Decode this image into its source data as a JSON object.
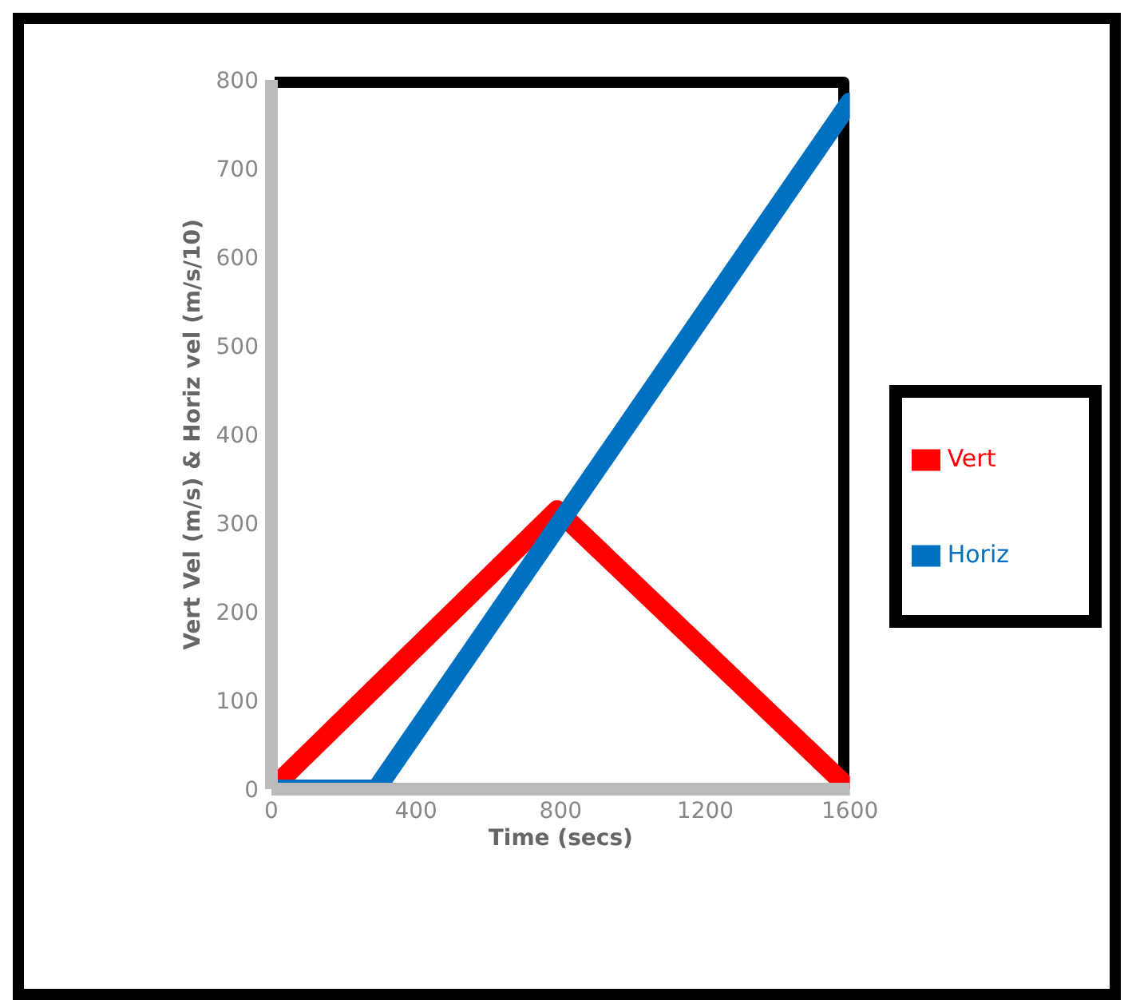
{
  "chart_data": {
    "type": "line",
    "xlabel": "Time (secs)",
    "ylabel": "Vert Vel (m/s) & Horiz vel (m/s/10)",
    "xlim": [
      0,
      1600
    ],
    "xticks": [
      0,
      400,
      800,
      1200,
      1600
    ],
    "ylim": [
      0,
      800
    ],
    "yticks": [
      0,
      100,
      200,
      300,
      400,
      500,
      600,
      700,
      800
    ],
    "grid": false,
    "legend": "right",
    "marker": "none",
    "line_style": "solid",
    "series": [
      {
        "name": "Vert",
        "color": "#ff0000",
        "x": [
          0,
          790,
          1600
        ],
        "values": [
          0,
          315,
          0
        ]
      },
      {
        "name": "Horiz",
        "color": "#0070c0",
        "x": [
          0,
          200,
          290,
          1600
        ],
        "values": [
          0,
          0,
          0,
          775
        ]
      }
    ]
  }
}
